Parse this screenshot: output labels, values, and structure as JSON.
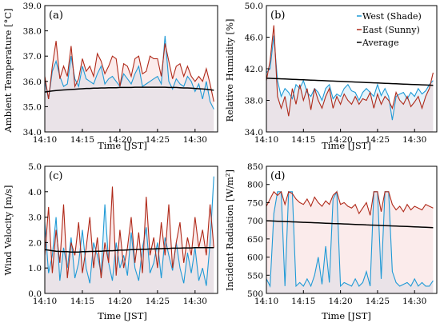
{
  "colors": {
    "west": "#1f9ad6",
    "east": "#b02a1a",
    "average": "#000000",
    "west_fill": "#cfe9f7",
    "east_fill": "#f3c6c6"
  },
  "legend": {
    "west": "West (Shade)",
    "east": "East (Sunny)",
    "average": "Average"
  },
  "chart_data": [
    {
      "type": "line",
      "panel_label": "(a)",
      "ylabel": "Ambient Temperature [°C]",
      "xlabel": "",
      "ylim": [
        34.0,
        39.0
      ],
      "yticks": [
        "34.0",
        "35.0",
        "36.0",
        "37.0",
        "38.0",
        "39.0"
      ],
      "xlim": [
        10,
        33
      ],
      "xticks": [
        "14:10",
        "14:15",
        "14:20",
        "14:25",
        "14:30"
      ],
      "x": [
        10,
        10.5,
        11,
        11.5,
        12,
        12.5,
        13,
        13.5,
        14,
        14.5,
        15,
        15.5,
        16,
        16.5,
        17,
        17.5,
        18,
        18.5,
        19,
        19.5,
        20,
        20.5,
        21,
        21.5,
        22,
        22.5,
        23,
        23.5,
        24,
        24.5,
        25,
        25.5,
        26,
        26.5,
        27,
        27.5,
        28,
        28.5,
        29,
        29.5,
        30,
        30.5,
        31,
        31.5,
        32,
        32.5
      ],
      "series": [
        {
          "name": "West (Shade)",
          "values": [
            36.0,
            35.3,
            36.4,
            36.8,
            36.2,
            35.8,
            35.9,
            37.0,
            36.1,
            35.8,
            36.6,
            36.1,
            36.0,
            35.9,
            36.3,
            36.6,
            35.9,
            36.1,
            36.2,
            36.0,
            35.8,
            36.3,
            36.1,
            35.9,
            36.3,
            36.6,
            35.8,
            35.9,
            36.0,
            36.1,
            36.2,
            35.9,
            37.8,
            36.0,
            35.7,
            36.1,
            35.9,
            35.8,
            36.2,
            36.0,
            35.6,
            35.9,
            35.3,
            36.0,
            35.2,
            34.9
          ]
        },
        {
          "name": "East (Sunny)",
          "values": [
            36.2,
            35.3,
            36.6,
            37.6,
            36.1,
            36.6,
            36.2,
            37.4,
            35.8,
            36.1,
            36.9,
            36.4,
            36.6,
            36.2,
            37.1,
            36.8,
            36.3,
            36.6,
            37.0,
            36.9,
            35.8,
            36.7,
            36.6,
            36.2,
            36.9,
            37.0,
            36.3,
            36.4,
            37.0,
            36.9,
            36.9,
            36.2,
            37.5,
            36.8,
            36.1,
            36.6,
            36.7,
            36.2,
            36.6,
            36.2,
            36.0,
            36.2,
            36.0,
            36.5,
            35.9,
            35.2
          ]
        },
        {
          "name": "Average",
          "values": [
            35.58,
            35.6,
            35.62,
            35.64,
            35.65,
            35.66,
            35.67,
            35.68,
            35.69,
            35.7,
            35.71,
            35.72,
            35.72,
            35.73,
            35.73,
            35.74,
            35.74,
            35.75,
            35.75,
            35.75,
            35.76,
            35.76,
            35.76,
            35.76,
            35.77,
            35.77,
            35.77,
            35.77,
            35.77,
            35.77,
            35.77,
            35.77,
            35.77,
            35.76,
            35.76,
            35.76,
            35.75,
            35.74,
            35.74,
            35.73,
            35.72,
            35.71,
            35.7,
            35.69,
            35.67,
            35.65
          ]
        }
      ]
    },
    {
      "type": "line",
      "panel_label": "(b)",
      "ylabel": "Relative Humidity [%]",
      "xlabel": "",
      "ylim": [
        34.0,
        50.0
      ],
      "yticks": [
        "34.0",
        "38.0",
        "42.0",
        "46.0",
        "50.0"
      ],
      "xlim": [
        10,
        33
      ],
      "xticks": [
        "14:10",
        "14:15",
        "14:20",
        "14:25",
        "14:30"
      ],
      "x": [
        10,
        10.5,
        11,
        11.5,
        12,
        12.5,
        13,
        13.5,
        14,
        14.5,
        15,
        15.5,
        16,
        16.5,
        17,
        17.5,
        18,
        18.5,
        19,
        19.5,
        20,
        20.5,
        21,
        21.5,
        22,
        22.5,
        23,
        23.5,
        24,
        24.5,
        25,
        25.5,
        26,
        26.5,
        27,
        27.5,
        28,
        28.5,
        29,
        29.5,
        30,
        30.5,
        31,
        31.5,
        32,
        32.5
      ],
      "series": [
        {
          "name": "West (Shade)",
          "values": [
            41.5,
            42.0,
            46.2,
            40.5,
            38.5,
            39.5,
            39.0,
            38.2,
            40.0,
            39.5,
            40.5,
            39.0,
            38.5,
            39.5,
            39.0,
            38.0,
            39.5,
            40.0,
            38.2,
            38.8,
            38.5,
            39.5,
            40.0,
            39.2,
            39.0,
            38.0,
            39.0,
            39.5,
            39.0,
            38.5,
            40.0,
            38.6,
            39.5,
            38.5,
            35.5,
            38.5,
            38.8,
            39.0,
            38.2,
            39.0,
            38.5,
            39.5,
            38.8,
            39.2,
            40.0,
            40.5
          ]
        },
        {
          "name": "East (Sunny)",
          "values": [
            40.5,
            43.0,
            47.5,
            38.5,
            37.0,
            38.5,
            36.0,
            39.5,
            37.5,
            40.0,
            38.0,
            39.5,
            36.8,
            39.5,
            38.0,
            37.0,
            38.5,
            39.5,
            37.0,
            38.5,
            37.5,
            38.8,
            38.0,
            37.5,
            38.5,
            37.5,
            38.2,
            38.0,
            39.0,
            37.0,
            38.8,
            37.5,
            38.5,
            38.0,
            37.0,
            39.0,
            38.0,
            37.5,
            38.5,
            37.2,
            37.8,
            38.5,
            37.0,
            38.5,
            39.5,
            41.5
          ]
        },
        {
          "name": "Average",
          "values": [
            40.8,
            40.78,
            40.76,
            40.74,
            40.72,
            40.7,
            40.68,
            40.66,
            40.64,
            40.62,
            40.6,
            40.58,
            40.56,
            40.54,
            40.52,
            40.5,
            40.48,
            40.46,
            40.44,
            40.42,
            40.4,
            40.38,
            40.36,
            40.34,
            40.32,
            40.3,
            40.28,
            40.26,
            40.24,
            40.22,
            40.2,
            40.18,
            40.16,
            40.14,
            40.12,
            40.1,
            40.08,
            40.06,
            40.04,
            40.02,
            40.0,
            39.98,
            39.96,
            39.94,
            39.92,
            39.9
          ]
        }
      ]
    },
    {
      "type": "line",
      "panel_label": "(c)",
      "ylabel": "Wind Velocity [m/s]",
      "xlabel": "Time [JST]",
      "ylim": [
        0.0,
        5.0
      ],
      "yticks": [
        "0.0",
        "1.0",
        "2.0",
        "3.0",
        "4.0",
        "5.0"
      ],
      "xlim": [
        10,
        33
      ],
      "xticks": [
        "14:10",
        "14:15",
        "14:20",
        "14:25",
        "14:30"
      ],
      "x": [
        10,
        10.5,
        11,
        11.5,
        12,
        12.5,
        13,
        13.5,
        14,
        14.5,
        15,
        15.5,
        16,
        16.5,
        17,
        17.5,
        18,
        18.5,
        19,
        19.5,
        20,
        20.5,
        21,
        21.5,
        22,
        22.5,
        23,
        23.5,
        24,
        24.5,
        25,
        25.5,
        26,
        26.5,
        27,
        27.5,
        28,
        28.5,
        29,
        29.5,
        30,
        30.5,
        31,
        31.5,
        32,
        32.5
      ],
      "series": [
        {
          "name": "West (Shade)",
          "values": [
            2.8,
            0.8,
            1.5,
            3.0,
            0.5,
            1.8,
            1.0,
            2.2,
            0.6,
            1.2,
            2.5,
            1.0,
            0.4,
            2.0,
            1.5,
            0.8,
            3.5,
            1.2,
            0.5,
            2.0,
            1.0,
            1.5,
            0.7,
            2.4,
            1.0,
            0.5,
            1.8,
            2.6,
            0.8,
            1.2,
            2.0,
            0.6,
            2.2,
            1.5,
            0.9,
            2.0,
            1.0,
            0.4,
            1.6,
            0.8,
            1.8,
            0.5,
            1.0,
            0.3,
            2.0,
            4.6
          ]
        },
        {
          "name": "East (Sunny)",
          "values": [
            1.5,
            3.4,
            0.8,
            2.5,
            1.2,
            3.5,
            0.6,
            2.0,
            1.5,
            2.8,
            0.8,
            1.8,
            3.0,
            1.0,
            2.2,
            0.6,
            2.0,
            1.2,
            4.2,
            0.7,
            2.5,
            1.0,
            1.8,
            3.0,
            1.2,
            2.4,
            0.8,
            3.8,
            1.5,
            2.2,
            1.0,
            2.8,
            1.5,
            3.5,
            1.0,
            2.0,
            2.8,
            1.2,
            2.2,
            1.5,
            3.0,
            1.8,
            2.5,
            1.5,
            3.5,
            1.8
          ]
        },
        {
          "name": "Average",
          "values": [
            1.72,
            1.7,
            1.68,
            1.66,
            1.65,
            1.64,
            1.64,
            1.63,
            1.63,
            1.63,
            1.64,
            1.64,
            1.65,
            1.65,
            1.66,
            1.66,
            1.67,
            1.68,
            1.68,
            1.69,
            1.7,
            1.7,
            1.71,
            1.72,
            1.72,
            1.73,
            1.74,
            1.74,
            1.75,
            1.75,
            1.76,
            1.76,
            1.77,
            1.77,
            1.78,
            1.78,
            1.78,
            1.79,
            1.79,
            1.79,
            1.8,
            1.8,
            1.8,
            1.8,
            1.8,
            1.8
          ]
        }
      ]
    },
    {
      "type": "line",
      "panel_label": "(d)",
      "ylabel": "Incident Radiation [W/m²]",
      "xlabel": "Time [JST]",
      "ylim": [
        500,
        850
      ],
      "yticks": [
        "500",
        "550",
        "600",
        "650",
        "700",
        "750",
        "800",
        "850"
      ],
      "xlim": [
        10,
        33
      ],
      "xticks": [
        "14:10",
        "14:15",
        "14:20",
        "14:25",
        "14:30"
      ],
      "x": [
        10,
        10.5,
        11,
        11.5,
        12,
        12.5,
        13,
        13.5,
        14,
        14.5,
        15,
        15.5,
        16,
        16.5,
        17,
        17.5,
        18,
        18.5,
        19,
        19.5,
        20,
        20.5,
        21,
        21.5,
        22,
        22.5,
        23,
        23.5,
        24,
        24.5,
        25,
        25.5,
        26,
        26.5,
        27,
        27.5,
        28,
        28.5,
        29,
        29.5,
        30,
        30.5,
        31,
        31.5,
        32,
        32.5
      ],
      "series": [
        {
          "name": "West (Shade)",
          "values": [
            540,
            520,
            720,
            780,
            780,
            520,
            780,
            780,
            520,
            530,
            520,
            540,
            520,
            550,
            600,
            525,
            630,
            530,
            760,
            780,
            520,
            530,
            525,
            520,
            540,
            520,
            530,
            560,
            520,
            780,
            780,
            540,
            780,
            780,
            560,
            530,
            520,
            525,
            530,
            520,
            540,
            520,
            530,
            520,
            520,
            535
          ]
        },
        {
          "name": "East (Sunny)",
          "values": [
            740,
            760,
            780,
            770,
            780,
            745,
            780,
            775,
            760,
            750,
            745,
            760,
            740,
            765,
            750,
            740,
            755,
            745,
            770,
            780,
            745,
            750,
            740,
            735,
            745,
            720,
            735,
            750,
            715,
            780,
            780,
            725,
            780,
            780,
            745,
            730,
            740,
            725,
            745,
            730,
            740,
            735,
            730,
            745,
            740,
            735
          ]
        },
        {
          "name": "Average",
          "values": [
            700,
            699.6,
            699.2,
            698.7,
            698.3,
            697.9,
            697.5,
            697.1,
            696.7,
            696.2,
            695.8,
            695.4,
            695,
            694.6,
            694.2,
            693.7,
            693.3,
            692.9,
            692.5,
            692.1,
            691.7,
            691.2,
            690.8,
            690.4,
            690,
            689.6,
            689.2,
            688.7,
            688.3,
            687.9,
            687.5,
            687.1,
            686.7,
            686.2,
            685.8,
            685.4,
            685,
            684.6,
            684.2,
            683.7,
            683.3,
            682.9,
            682.5,
            682.1,
            681.7,
            681.2
          ]
        }
      ]
    }
  ]
}
